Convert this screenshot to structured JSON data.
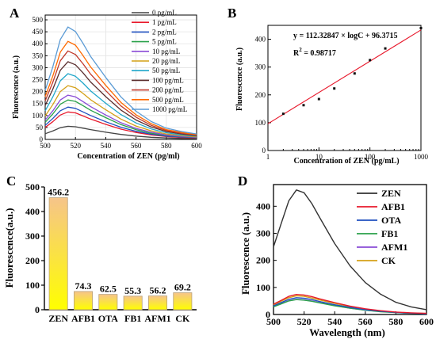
{
  "chart_data": [
    {
      "panel_letter": "A",
      "type": "line",
      "title": "",
      "xlabel": "Concentration of ZEN (pg/ml)",
      "ylabel": "Fluorescence (a.u.)",
      "xlim": [
        500,
        600
      ],
      "ylim": [
        0,
        520
      ],
      "xticks": [
        500,
        520,
        540,
        560,
        580,
        600
      ],
      "yticks": [
        0,
        50,
        100,
        150,
        200,
        250,
        300,
        350,
        400,
        450,
        500
      ],
      "legend_position": "top-right",
      "x": [
        500,
        505,
        510,
        515,
        520,
        525,
        530,
        540,
        550,
        560,
        570,
        580,
        590,
        600
      ],
      "series": [
        {
          "name": "0 pg/mL",
          "color": "#444444",
          "peak": 55,
          "values": [
            24,
            35,
            49,
            55,
            53,
            47,
            41,
            30,
            21,
            14,
            9,
            6,
            4,
            3
          ]
        },
        {
          "name": "1 pg/mL",
          "color": "#e8192c",
          "peak": 115,
          "values": [
            50,
            74,
            102,
            115,
            111,
            98,
            85,
            63,
            43,
            29,
            19,
            12,
            8,
            6
          ]
        },
        {
          "name": "2 pg/mL",
          "color": "#1f4fbf",
          "peak": 135,
          "values": [
            59,
            87,
            120,
            135,
            130,
            115,
            100,
            74,
            51,
            34,
            22,
            14,
            10,
            7
          ]
        },
        {
          "name": "5 pg/mL",
          "color": "#2aa14a",
          "peak": 165,
          "values": [
            72,
            106,
            147,
            165,
            159,
            141,
            122,
            91,
            62,
            41,
            26,
            17,
            12,
            8
          ]
        },
        {
          "name": "10 pg/mL",
          "color": "#8a4bd6",
          "peak": 185,
          "values": [
            81,
            119,
            165,
            185,
            178,
            158,
            137,
            102,
            70,
            46,
            30,
            19,
            13,
            9
          ]
        },
        {
          "name": "20 pg/mL",
          "color": "#d4a017",
          "peak": 225,
          "values": [
            98,
            145,
            200,
            225,
            216,
            192,
            166,
            124,
            85,
            56,
            36,
            23,
            16,
            11
          ]
        },
        {
          "name": "50 pg/mL",
          "color": "#1fa6c9",
          "peak": 275,
          "values": [
            120,
            177,
            245,
            275,
            264,
            235,
            203,
            151,
            104,
            69,
            44,
            28,
            19,
            14
          ]
        },
        {
          "name": "100 pg/mL",
          "color": "#5a2d2d",
          "peak": 325,
          "values": [
            142,
            209,
            289,
            325,
            312,
            278,
            240,
            179,
            123,
            81,
            52,
            33,
            23,
            16
          ]
        },
        {
          "name": "200 pg/mL",
          "color": "#c0392b",
          "peak": 370,
          "values": [
            161,
            238,
            329,
            370,
            355,
            316,
            273,
            204,
            140,
            93,
            59,
            37,
            26,
            18
          ]
        },
        {
          "name": "500 pg/mL",
          "color": "#ff6a00",
          "peak": 410,
          "values": [
            179,
            264,
            365,
            410,
            394,
            350,
            303,
            226,
            155,
            103,
            66,
            41,
            29,
            20
          ]
        },
        {
          "name": "1000 pg/mL",
          "color": "#5b9bd5",
          "peak": 470,
          "values": [
            205,
            302,
            418,
            470,
            451,
            401,
            347,
            259,
            178,
            118,
            75,
            47,
            33,
            23
          ]
        }
      ]
    },
    {
      "panel_letter": "B",
      "type": "scatter",
      "title": "",
      "xlabel": "Concentration of ZEN (pg/mL)",
      "ylabel": "Fluorescence (a.u.)",
      "x_scale": "log",
      "xlim": [
        1,
        1000
      ],
      "ylim": [
        0,
        450
      ],
      "xticks": [
        1,
        10,
        100,
        1000
      ],
      "yticks": [
        0,
        100,
        200,
        300,
        400
      ],
      "points": {
        "x": [
          2,
          5,
          10,
          20,
          50,
          100,
          200,
          1000
        ],
        "y": [
          132,
          163,
          185,
          223,
          277,
          325,
          367,
          440
        ]
      },
      "fit": {
        "slope": 112.32847,
        "intercept": 96.3715,
        "color": "#e8192c"
      },
      "annotations": {
        "equation": "y = 112.32847 × logC + 96.3715",
        "r2_prefix": "R",
        "r2_sup": "2",
        "r2_value": " = 0.98717"
      }
    },
    {
      "panel_letter": "C",
      "type": "bar",
      "title": "",
      "xlabel": "",
      "ylabel": "Fluorescence(a.u.)",
      "ylim": [
        0,
        500
      ],
      "yticks": [
        0,
        100,
        200,
        300,
        400,
        500
      ],
      "categories": [
        "ZEN",
        "AFB1",
        "OTA",
        "FB1",
        "AFM1",
        "CK"
      ],
      "values": [
        456.2,
        74.3,
        62.5,
        55.3,
        56.2,
        69.2
      ],
      "value_labels": [
        "456.2",
        "74.3",
        "62.5",
        "55.3",
        "56.2",
        "69.2"
      ],
      "bar_gradient": [
        "#f6c48a",
        "#ffff00"
      ]
    },
    {
      "panel_letter": "D",
      "type": "line",
      "title": "",
      "xlabel": "Wavelength (nm)",
      "ylabel": "Fluorescence (a.u.)",
      "xlim": [
        500,
        600
      ],
      "ylim": [
        0,
        480
      ],
      "xticks": [
        500,
        520,
        540,
        560,
        580,
        600
      ],
      "yticks": [
        0,
        100,
        200,
        300,
        400
      ],
      "legend_position": "top-right",
      "x": [
        500,
        505,
        510,
        515,
        520,
        525,
        530,
        540,
        550,
        560,
        570,
        580,
        590,
        600
      ],
      "series": [
        {
          "name": "ZEN",
          "color": "#333333",
          "peak": 460,
          "values": [
            250,
            335,
            420,
            460,
            450,
            410,
            360,
            262,
            180,
            118,
            75,
            45,
            28,
            18
          ]
        },
        {
          "name": "AFB1",
          "color": "#e8192c",
          "peak": 74,
          "values": [
            38,
            52,
            67,
            74,
            72,
            66,
            58,
            44,
            31,
            21,
            14,
            9,
            6,
            4
          ]
        },
        {
          "name": "OTA",
          "color": "#1f4fbf",
          "peak": 62,
          "values": [
            32,
            44,
            56,
            62,
            60,
            55,
            48,
            36,
            26,
            18,
            12,
            8,
            5,
            3
          ]
        },
        {
          "name": "FB1",
          "color": "#2aa14a",
          "peak": 55,
          "values": [
            28,
            39,
            50,
            55,
            53,
            49,
            43,
            32,
            23,
            16,
            10,
            7,
            4,
            3
          ]
        },
        {
          "name": "AFM1",
          "color": "#8a4bd6",
          "peak": 56,
          "values": [
            29,
            40,
            51,
            56,
            54,
            50,
            44,
            33,
            23,
            16,
            11,
            7,
            4,
            3
          ]
        },
        {
          "name": "CK",
          "color": "#d4a017",
          "peak": 69,
          "values": [
            35,
            49,
            62,
            69,
            67,
            61,
            54,
            41,
            29,
            20,
            13,
            8,
            5,
            4
          ]
        }
      ]
    }
  ]
}
